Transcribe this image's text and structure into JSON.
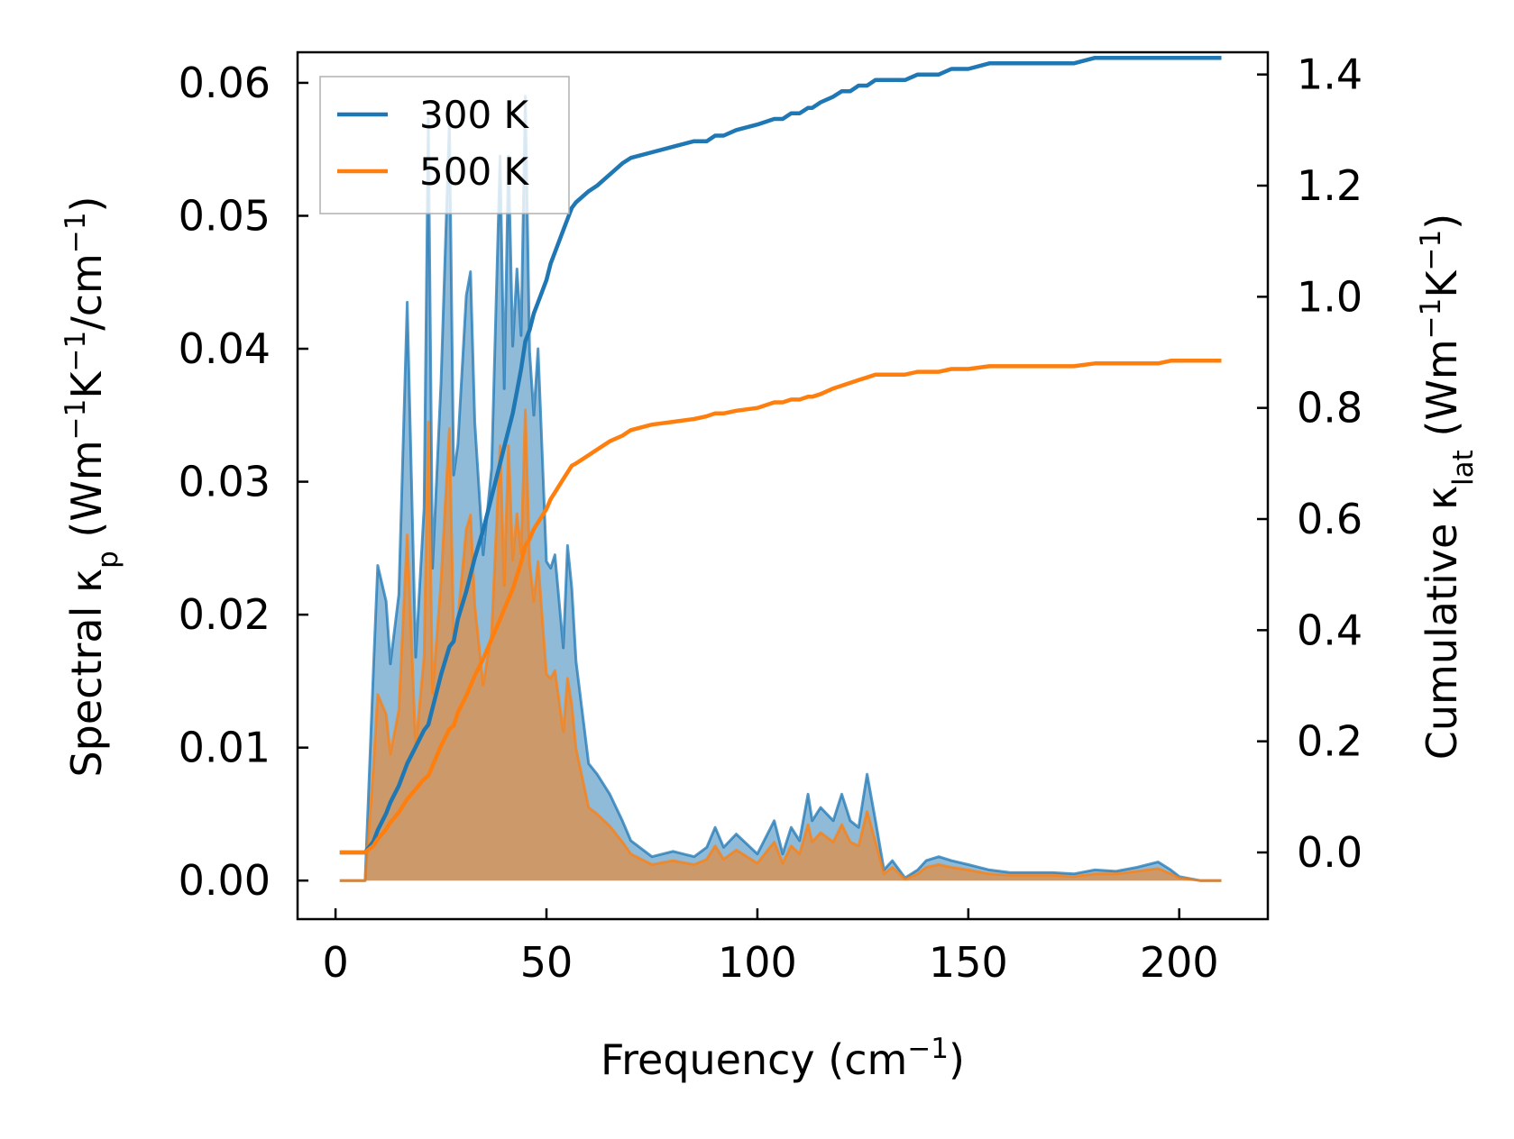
{
  "chart_data": {
    "type": "area",
    "title": "",
    "xlabel": "Frequency (cm⁻¹)",
    "ylabel_left": "Spectral κp (Wm⁻¹K⁻¹/cm⁻¹)",
    "ylabel_right": "Cumulative κlat (Wm⁻¹K⁻¹)",
    "xlim": [
      -9,
      221
    ],
    "ylim_left": [
      -0.0029,
      0.0623
    ],
    "ylim_right": [
      -0.12,
      1.44
    ],
    "x_ticks": [
      "0",
      "50",
      "100",
      "150",
      "200"
    ],
    "y_left_ticks": [
      "0.00",
      "0.01",
      "0.02",
      "0.03",
      "0.04",
      "0.05",
      "0.06"
    ],
    "y_right_ticks": [
      "0.0",
      "0.2",
      "0.4",
      "0.6",
      "0.8",
      "1.0",
      "1.2",
      "1.4"
    ],
    "legend": {
      "position": "top-left",
      "entries": [
        "300 K",
        "500 K"
      ]
    },
    "x": [
      1,
      7,
      9,
      10,
      12,
      13,
      15,
      17,
      19,
      21,
      22,
      23,
      25,
      27,
      28,
      29,
      31,
      32,
      33,
      35,
      37,
      39,
      40,
      41,
      42,
      43,
      44,
      45,
      46,
      47,
      48,
      50,
      51,
      52,
      54,
      55,
      56,
      57,
      60,
      62,
      65,
      68,
      70,
      75,
      80,
      85,
      88,
      90,
      92,
      95,
      100,
      104,
      106,
      108,
      110,
      112,
      113,
      115,
      118,
      120,
      122,
      124,
      126,
      128,
      130,
      132,
      135,
      138,
      140,
      143,
      146,
      150,
      155,
      160,
      165,
      170,
      175,
      180,
      185,
      190,
      195,
      198,
      200,
      205,
      210
    ],
    "series": [
      {
        "name": "300 K",
        "color": "#1f77b4",
        "spectral": [
          0.0,
          0.0,
          0.016,
          0.0237,
          0.021,
          0.0163,
          0.0215,
          0.0435,
          0.0168,
          0.028,
          0.0573,
          0.0235,
          0.0375,
          0.0571,
          0.0305,
          0.0328,
          0.044,
          0.0458,
          0.0345,
          0.0245,
          0.031,
          0.0545,
          0.037,
          0.0545,
          0.0402,
          0.046,
          0.041,
          0.059,
          0.0398,
          0.035,
          0.04,
          0.024,
          0.0235,
          0.0245,
          0.0175,
          0.0252,
          0.022,
          0.0165,
          0.0088,
          0.008,
          0.0065,
          0.0045,
          0.003,
          0.0018,
          0.0022,
          0.0018,
          0.0025,
          0.004,
          0.0025,
          0.0035,
          0.002,
          0.0045,
          0.002,
          0.004,
          0.003,
          0.0065,
          0.0045,
          0.0055,
          0.0045,
          0.0065,
          0.0045,
          0.004,
          0.008,
          0.0045,
          0.0008,
          0.0015,
          0.0002,
          0.0008,
          0.0015,
          0.0018,
          0.0015,
          0.0012,
          0.0008,
          0.0006,
          0.0006,
          0.0006,
          0.0005,
          0.0008,
          0.0007,
          0.001,
          0.0014,
          0.0008,
          0.0003,
          0.0,
          0.0
        ],
        "cumulative": [
          0.0,
          0.0,
          0.02,
          0.04,
          0.07,
          0.09,
          0.12,
          0.16,
          0.19,
          0.22,
          0.23,
          0.26,
          0.32,
          0.37,
          0.38,
          0.42,
          0.47,
          0.5,
          0.53,
          0.58,
          0.64,
          0.7,
          0.73,
          0.76,
          0.79,
          0.83,
          0.87,
          0.92,
          0.94,
          0.97,
          0.99,
          1.03,
          1.06,
          1.08,
          1.12,
          1.14,
          1.16,
          1.17,
          1.19,
          1.2,
          1.22,
          1.24,
          1.25,
          1.26,
          1.27,
          1.28,
          1.28,
          1.29,
          1.29,
          1.3,
          1.31,
          1.32,
          1.32,
          1.33,
          1.33,
          1.34,
          1.34,
          1.35,
          1.36,
          1.37,
          1.37,
          1.38,
          1.38,
          1.39,
          1.39,
          1.39,
          1.39,
          1.4,
          1.4,
          1.4,
          1.41,
          1.41,
          1.42,
          1.42,
          1.42,
          1.42,
          1.42,
          1.43,
          1.43,
          1.43,
          1.43,
          1.43,
          1.43,
          1.43,
          1.43
        ]
      },
      {
        "name": "500 K",
        "color": "#ff7f0e",
        "spectral": [
          0.0,
          0.0,
          0.0085,
          0.014,
          0.0125,
          0.0095,
          0.0128,
          0.026,
          0.01,
          0.0168,
          0.0345,
          0.0141,
          0.0225,
          0.034,
          0.0183,
          0.0197,
          0.0264,
          0.0275,
          0.0207,
          0.0147,
          0.0186,
          0.0327,
          0.0222,
          0.0327,
          0.0241,
          0.0276,
          0.0246,
          0.0354,
          0.0239,
          0.021,
          0.024,
          0.0155,
          0.0152,
          0.0158,
          0.0112,
          0.0152,
          0.0132,
          0.0099,
          0.0055,
          0.005,
          0.0041,
          0.0029,
          0.002,
          0.0012,
          0.0015,
          0.0012,
          0.0016,
          0.0026,
          0.0016,
          0.0023,
          0.0013,
          0.0029,
          0.0013,
          0.0026,
          0.002,
          0.0042,
          0.0029,
          0.0036,
          0.0029,
          0.0042,
          0.0029,
          0.0026,
          0.0052,
          0.0029,
          0.0005,
          0.001,
          0.0001,
          0.0005,
          0.001,
          0.0012,
          0.001,
          0.0008,
          0.0005,
          0.0004,
          0.0004,
          0.0004,
          0.0003,
          0.0005,
          0.0005,
          0.0007,
          0.0009,
          0.0005,
          0.0002,
          0.0,
          0.0
        ],
        "cumulative": [
          0.0,
          0.0,
          0.012,
          0.024,
          0.042,
          0.054,
          0.072,
          0.096,
          0.114,
          0.132,
          0.138,
          0.156,
          0.192,
          0.222,
          0.228,
          0.252,
          0.282,
          0.3,
          0.318,
          0.348,
          0.384,
          0.42,
          0.438,
          0.456,
          0.474,
          0.498,
          0.522,
          0.552,
          0.564,
          0.582,
          0.594,
          0.618,
          0.636,
          0.648,
          0.672,
          0.684,
          0.696,
          0.7,
          0.715,
          0.725,
          0.74,
          0.75,
          0.76,
          0.77,
          0.775,
          0.78,
          0.785,
          0.79,
          0.79,
          0.795,
          0.8,
          0.81,
          0.81,
          0.815,
          0.815,
          0.82,
          0.82,
          0.825,
          0.835,
          0.84,
          0.845,
          0.85,
          0.855,
          0.86,
          0.86,
          0.86,
          0.86,
          0.865,
          0.865,
          0.865,
          0.87,
          0.87,
          0.875,
          0.875,
          0.875,
          0.875,
          0.875,
          0.88,
          0.88,
          0.88,
          0.88,
          0.885,
          0.885,
          0.885,
          0.885
        ]
      }
    ]
  }
}
